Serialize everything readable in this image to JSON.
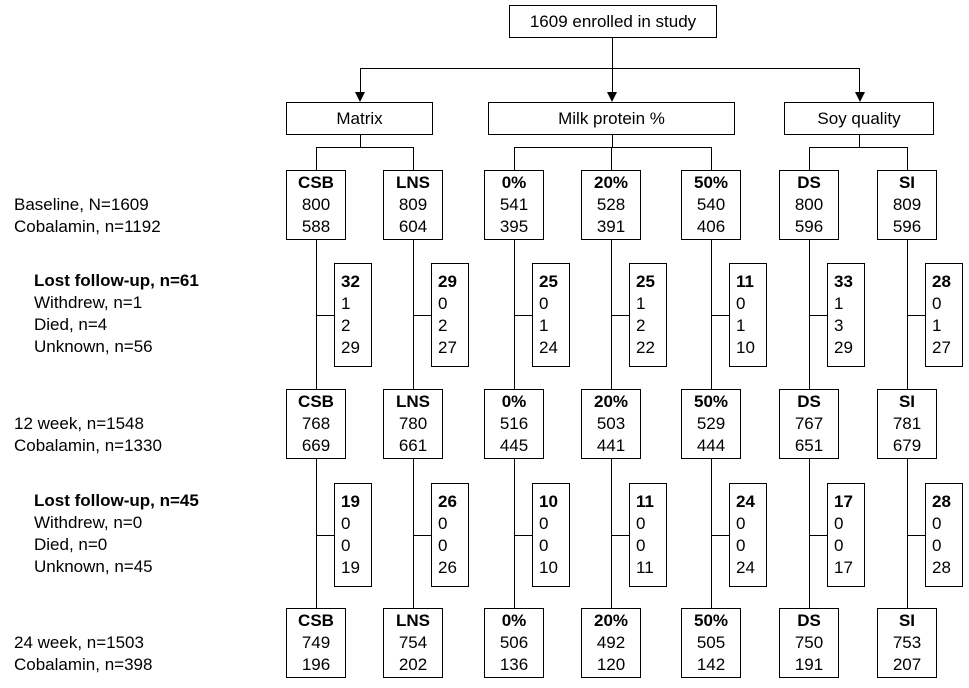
{
  "top_box": "1609 enrolled in study",
  "groups": [
    {
      "label": "Matrix"
    },
    {
      "label": "Milk protein %"
    },
    {
      "label": "Soy quality"
    }
  ],
  "rows": [
    {
      "title": "Baseline, N=1609",
      "sub": "Cobalamin, n=1192"
    },
    {
      "title": "12 week, n=1548",
      "sub": "Cobalamin, n=1330"
    },
    {
      "title": "24 week, n=1503",
      "sub": "Cobalamin, n=398"
    }
  ],
  "losses": [
    {
      "title": "Lost follow-up, n=61",
      "withdrew": "Withdrew, n=1",
      "died": "Died, n=4",
      "unknown": "Unknown, n=56"
    },
    {
      "title": "Lost follow-up, n=45",
      "withdrew": "Withdrew, n=0",
      "died": "Died, n=0",
      "unknown": "Unknown, n=45"
    }
  ],
  "arms": [
    {
      "label": "CSB",
      "stages": [
        {
          "n": "800",
          "cob": "588"
        },
        {
          "n": "768",
          "cob": "669"
        },
        {
          "n": "749",
          "cob": "196"
        }
      ],
      "losses": [
        {
          "total": "32",
          "withdrew": "1",
          "died": "2",
          "unknown": "29"
        },
        {
          "total": "19",
          "withdrew": "0",
          "died": "0",
          "unknown": "19"
        }
      ]
    },
    {
      "label": "LNS",
      "stages": [
        {
          "n": "809",
          "cob": "604"
        },
        {
          "n": "780",
          "cob": "661"
        },
        {
          "n": "754",
          "cob": "202"
        }
      ],
      "losses": [
        {
          "total": "29",
          "withdrew": "0",
          "died": "2",
          "unknown": "27"
        },
        {
          "total": "26",
          "withdrew": "0",
          "died": "0",
          "unknown": "26"
        }
      ]
    },
    {
      "label": "0%",
      "stages": [
        {
          "n": "541",
          "cob": "395"
        },
        {
          "n": "516",
          "cob": "445"
        },
        {
          "n": "506",
          "cob": "136"
        }
      ],
      "losses": [
        {
          "total": "25",
          "withdrew": "0",
          "died": "1",
          "unknown": "24"
        },
        {
          "total": "10",
          "withdrew": "0",
          "died": "0",
          "unknown": "10"
        }
      ]
    },
    {
      "label": "20%",
      "stages": [
        {
          "n": "528",
          "cob": "391"
        },
        {
          "n": "503",
          "cob": "441"
        },
        {
          "n": "492",
          "cob": "120"
        }
      ],
      "losses": [
        {
          "total": "25",
          "withdrew": "1",
          "died": "2",
          "unknown": "22"
        },
        {
          "total": "11",
          "withdrew": "0",
          "died": "0",
          "unknown": "11"
        }
      ]
    },
    {
      "label": "50%",
      "stages": [
        {
          "n": "540",
          "cob": "406"
        },
        {
          "n": "529",
          "cob": "444"
        },
        {
          "n": "505",
          "cob": "142"
        }
      ],
      "losses": [
        {
          "total": "11",
          "withdrew": "0",
          "died": "1",
          "unknown": "10"
        },
        {
          "total": "24",
          "withdrew": "0",
          "died": "0",
          "unknown": "24"
        }
      ]
    },
    {
      "label": "DS",
      "stages": [
        {
          "n": "800",
          "cob": "596"
        },
        {
          "n": "767",
          "cob": "651"
        },
        {
          "n": "750",
          "cob": "191"
        }
      ],
      "losses": [
        {
          "total": "33",
          "withdrew": "1",
          "died": "3",
          "unknown": "29"
        },
        {
          "total": "17",
          "withdrew": "0",
          "died": "0",
          "unknown": "17"
        }
      ]
    },
    {
      "label": "SI",
      "stages": [
        {
          "n": "809",
          "cob": "596"
        },
        {
          "n": "781",
          "cob": "679"
        },
        {
          "n": "753",
          "cob": "207"
        }
      ],
      "losses": [
        {
          "total": "28",
          "withdrew": "0",
          "died": "1",
          "unknown": "27"
        },
        {
          "total": "28",
          "withdrew": "0",
          "died": "0",
          "unknown": "28"
        }
      ]
    }
  ]
}
